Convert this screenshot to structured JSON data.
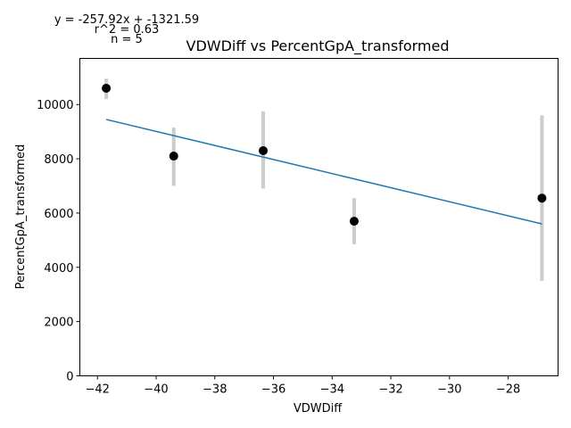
{
  "chart_data": {
    "type": "scatter",
    "title": "VDWDiff vs PercentGpA_transformed",
    "xlabel": "VDWDiff",
    "ylabel": "PercentGpA_transformed",
    "xlim": [
      -42.6,
      -26.3
    ],
    "ylim": [
      0,
      11700
    ],
    "xticks": [
      -42,
      -40,
      -38,
      -36,
      -34,
      -32,
      -30,
      -28
    ],
    "yticks": [
      0,
      2000,
      4000,
      6000,
      8000,
      10000
    ],
    "grid": false,
    "colors": {
      "points": "#000000",
      "errorbars": "#cccccc",
      "fit": "#1f77b4"
    },
    "points": [
      {
        "x": -41.7,
        "y": 10600,
        "err_low": 10200,
        "err_high": 10950
      },
      {
        "x": -39.4,
        "y": 8100,
        "err_low": 7000,
        "err_high": 9150
      },
      {
        "x": -36.35,
        "y": 8300,
        "err_low": 6900,
        "err_high": 9750
      },
      {
        "x": -33.25,
        "y": 5700,
        "err_low": 4850,
        "err_high": 6550
      },
      {
        "x": -26.85,
        "y": 6550,
        "err_low": 3500,
        "err_high": 9600
      }
    ],
    "fit_line": {
      "x": [
        -41.7,
        -26.85
      ],
      "y": [
        9450,
        5600
      ]
    },
    "annotations": [
      "y = -257.92x + -1321.59",
      "r^2 = 0.63",
      "n = 5"
    ]
  }
}
